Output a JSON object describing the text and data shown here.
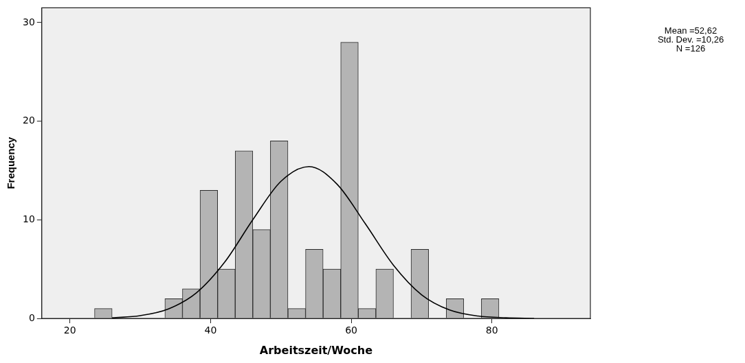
{
  "chart_data": {
    "type": "histogram",
    "xlabel": "Arbeitszeit/Woche",
    "ylabel": "Frequency",
    "bins": [
      23.5,
      26,
      28.5,
      31,
      33.5,
      36,
      38.5,
      41,
      43.5,
      46,
      48.5,
      51,
      53.5,
      56,
      58.5,
      61,
      63.5,
      66,
      68.5,
      71,
      73.5,
      76,
      78.5,
      81
    ],
    "values": [
      1,
      0,
      0,
      0,
      2,
      3,
      13,
      5,
      17,
      9,
      18,
      1,
      7,
      5,
      28,
      1,
      5,
      0,
      7,
      0,
      2,
      0,
      2
    ],
    "color": "#b4b4b4",
    "series": [
      {
        "type": "line",
        "color": "#000000",
        "x": [
          26,
          30,
          34,
          38,
          42,
          46,
          50,
          54,
          58,
          62,
          66,
          70,
          74,
          78,
          82,
          86
        ],
        "values": [
          0.06,
          0.28,
          0.96,
          2.6,
          5.7,
          10.0,
          13.9,
          15.4,
          13.6,
          9.6,
          5.4,
          2.4,
          0.85,
          0.24,
          0.06,
          0
        ]
      }
    ],
    "xlim": [
      16,
      94
    ],
    "xticks": [
      20,
      40,
      60,
      80
    ],
    "ylim": [
      0,
      31.5
    ],
    "yticks": [
      0,
      10,
      20,
      30
    ],
    "grid": false,
    "legend": false,
    "marker": "none",
    "annotations": [
      "Mean =52,62",
      "Std. Dev. =10,26",
      "N =126"
    ]
  }
}
